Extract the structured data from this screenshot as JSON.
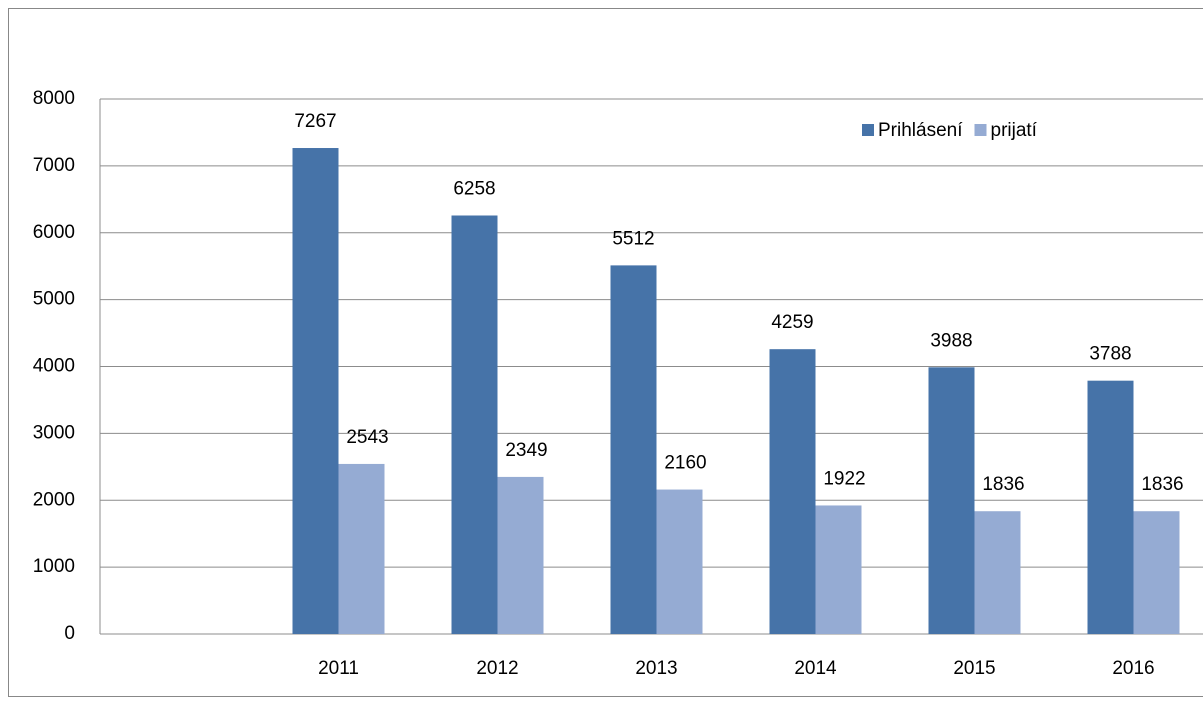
{
  "chart_data": {
    "type": "bar",
    "categories": [
      null,
      "2011",
      "2012",
      "2013",
      "2014",
      "2015",
      "2016"
    ],
    "series": [
      {
        "name": "Prihlásení",
        "color": "#4673a8",
        "values": [
          null,
          7267,
          6258,
          5512,
          4259,
          3988,
          3788
        ]
      },
      {
        "name": "prijatí",
        "color": "#95abd3",
        "values": [
          null,
          2543,
          2349,
          2160,
          1922,
          1836,
          1836
        ]
      }
    ],
    "ylim": [
      0,
      8000
    ],
    "yticks": [
      0,
      1000,
      2000,
      3000,
      4000,
      5000,
      6000,
      7000,
      8000
    ],
    "grid": true,
    "legend": "upper right"
  }
}
